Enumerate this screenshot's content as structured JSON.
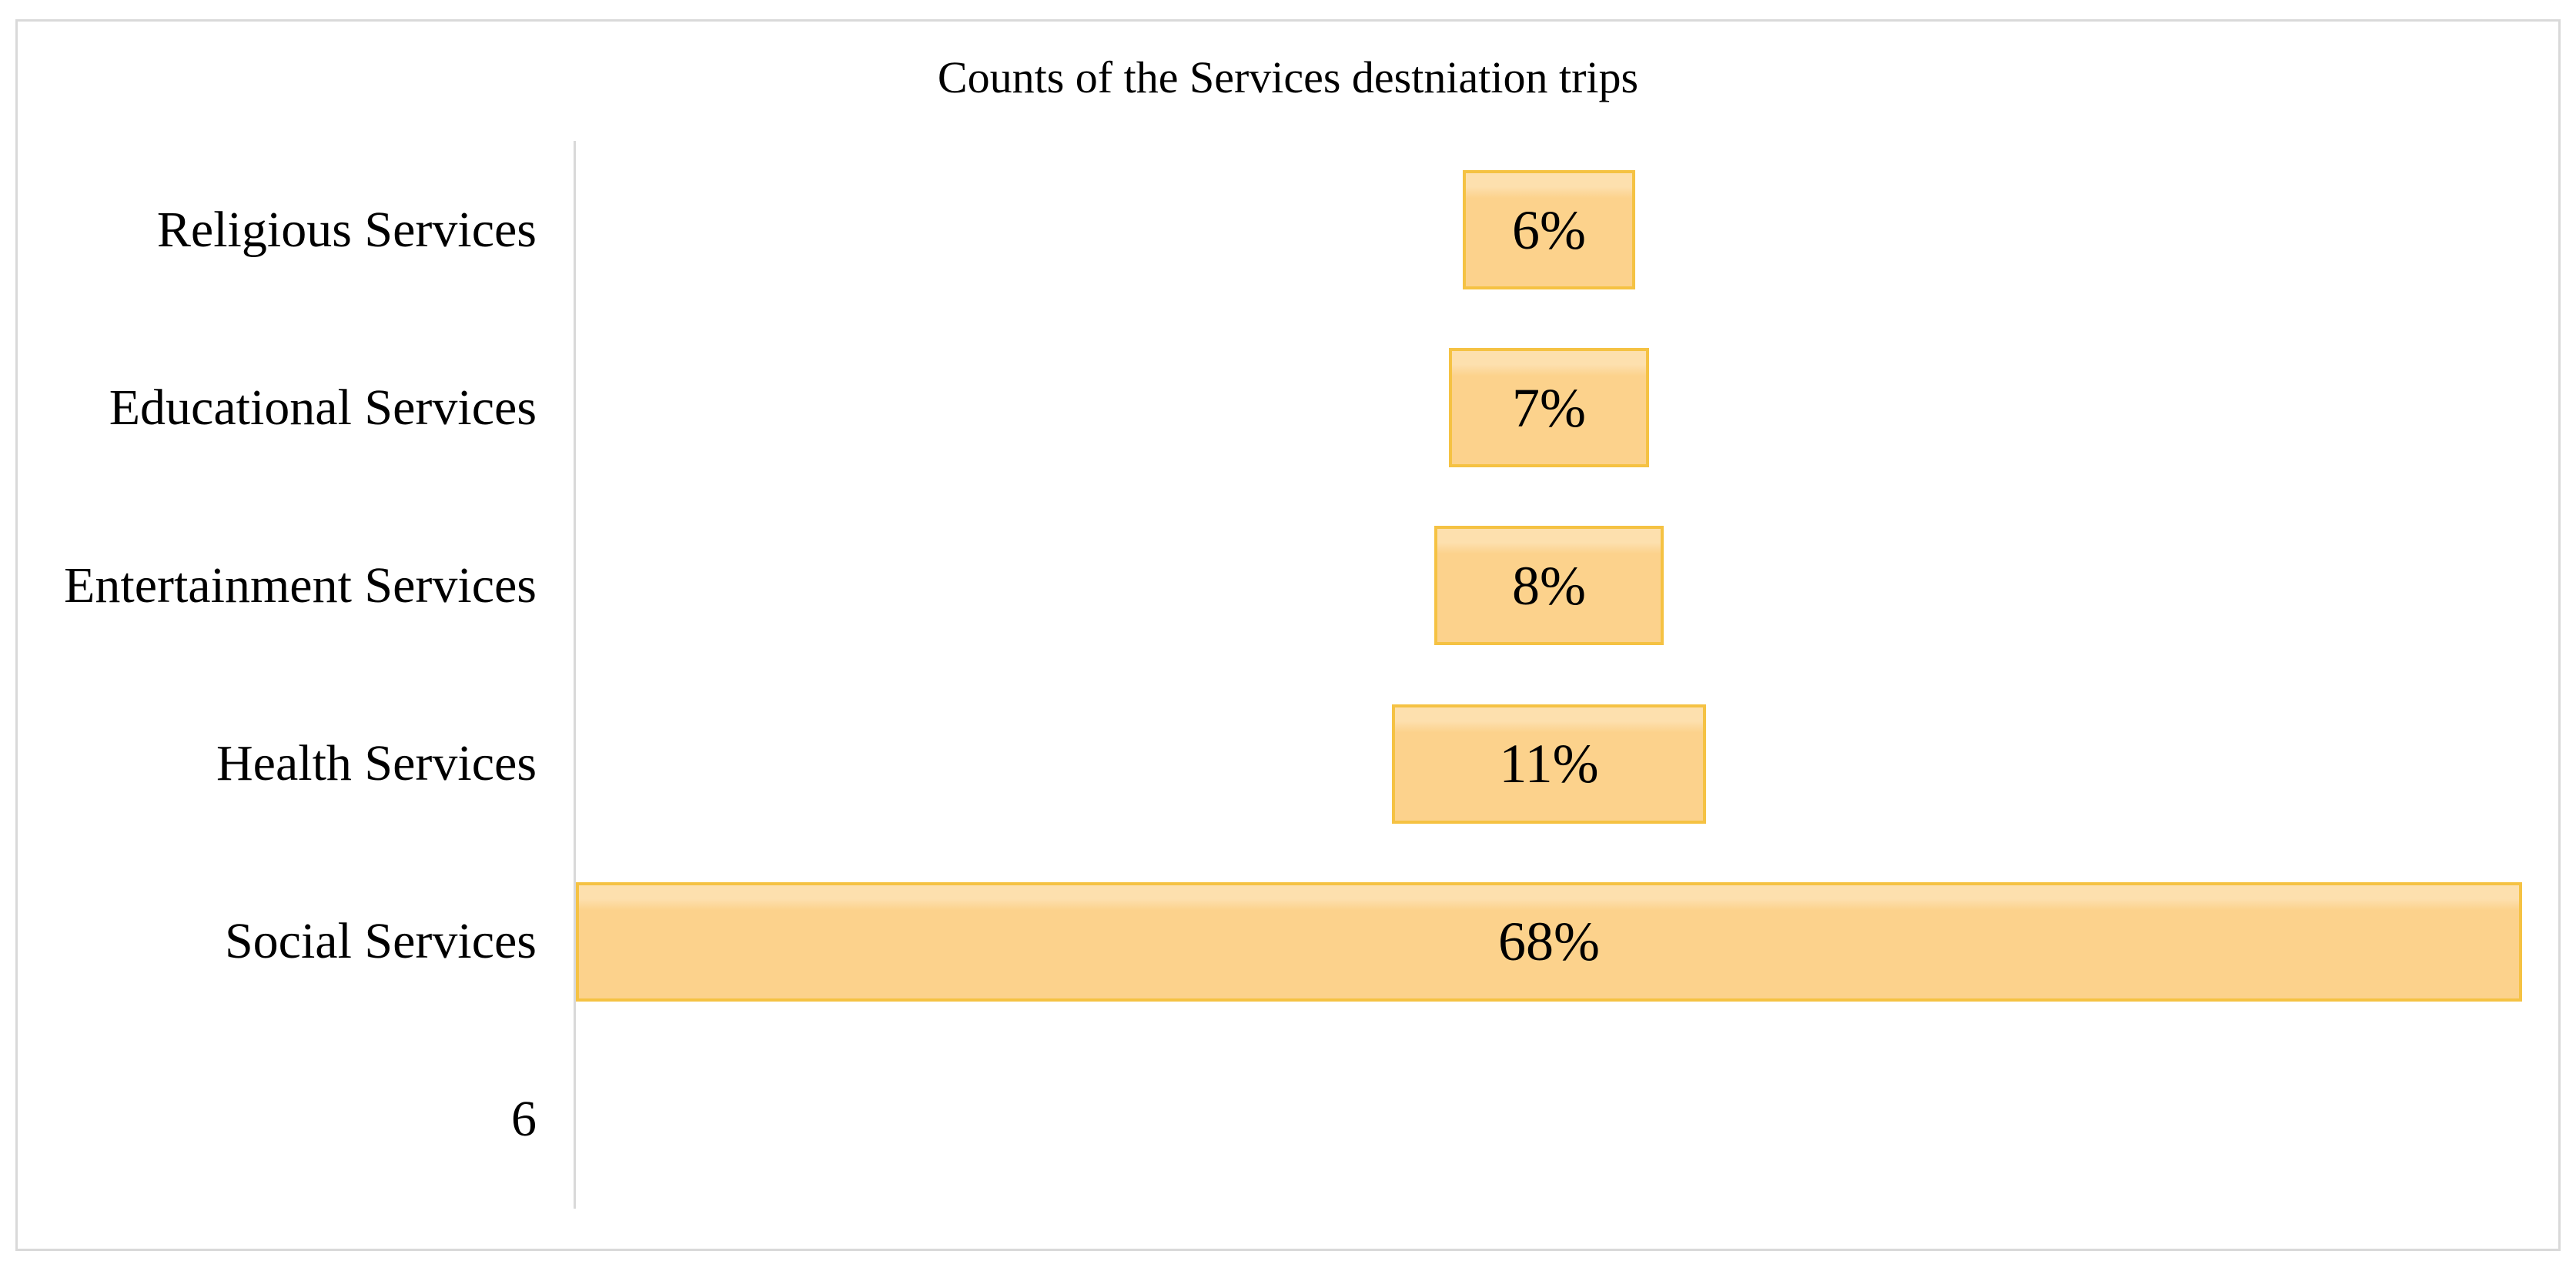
{
  "chart_data": {
    "type": "bar",
    "variant": "funnel: horizontal bars centered on plot midline",
    "title": "Counts of the Services destniation trips",
    "categories": [
      "Religious Services",
      "Educational Services",
      "Entertainment Services",
      "Health Services",
      "Social Services",
      "6"
    ],
    "values_percent": [
      6,
      7,
      8,
      11,
      68,
      null
    ],
    "data_labels": [
      "6%",
      "7%",
      "8%",
      "11%",
      "68%",
      ""
    ],
    "xlim": [
      0,
      68
    ],
    "legend": "none",
    "grid": "off",
    "layout_hints": {
      "category_axis": "left, vertical line only, no tick marks",
      "data_labels_position": "centered inside bars",
      "last_category_has_no_bar": true
    },
    "colors": {
      "bar_fill": "#FCD28C",
      "bar_fill_highlight": "#FDE0AE",
      "bar_border": "#F5C243",
      "axis_line": "#D9D9D9",
      "chart_frame_border": "#D9D9D9",
      "background": "#FFFFFF",
      "text": "#000000"
    }
  }
}
